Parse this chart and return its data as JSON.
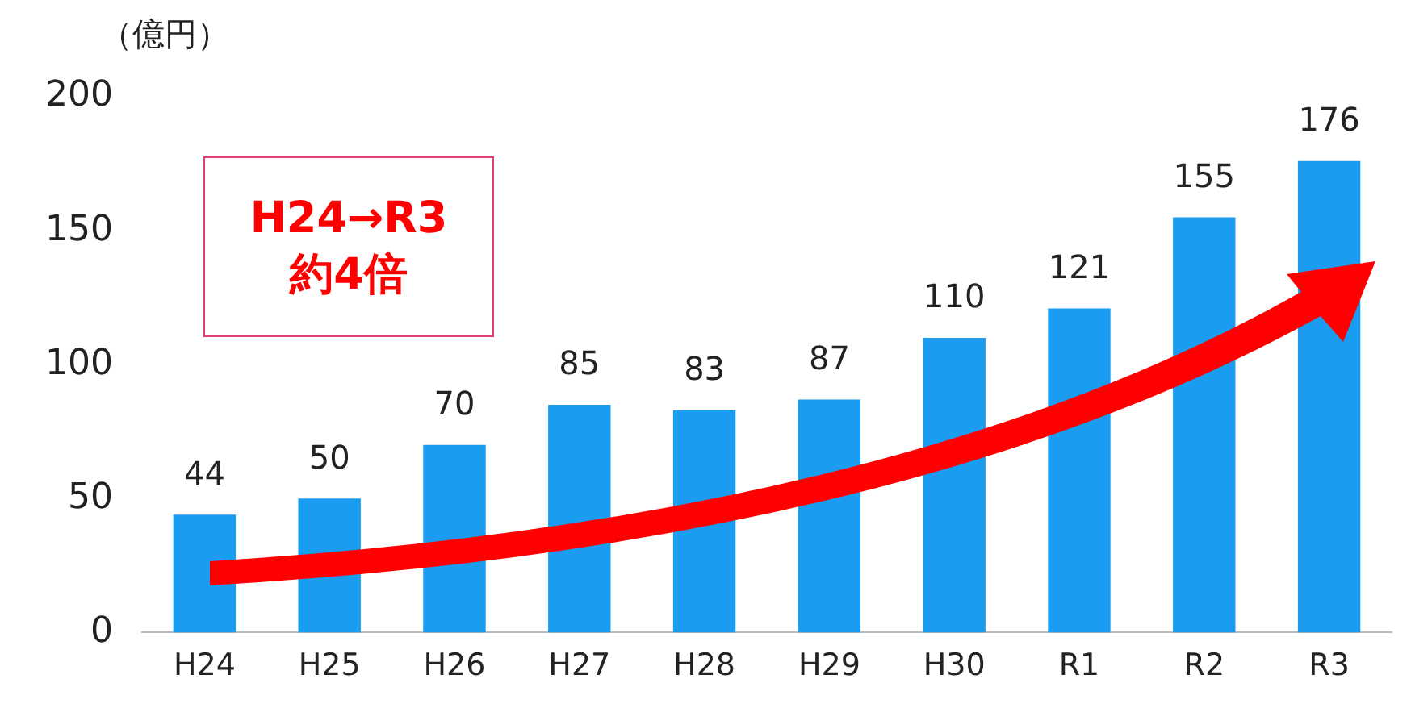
{
  "chart_data": {
    "type": "bar",
    "ylabel": "（億円）",
    "categories": [
      "H24",
      "H25",
      "H26",
      "H27",
      "H28",
      "H29",
      "H30",
      "R1",
      "R2",
      "R3"
    ],
    "values": [
      44,
      50,
      70,
      85,
      83,
      87,
      110,
      121,
      155,
      176
    ],
    "color": "#1a9cf0",
    "ylim": [
      0,
      200
    ],
    "yticks": [
      0,
      50,
      100,
      150,
      200
    ],
    "grid": false,
    "legend": false,
    "data_labels": true,
    "annotations": [
      "H24→R3\n約4倍"
    ]
  }
}
